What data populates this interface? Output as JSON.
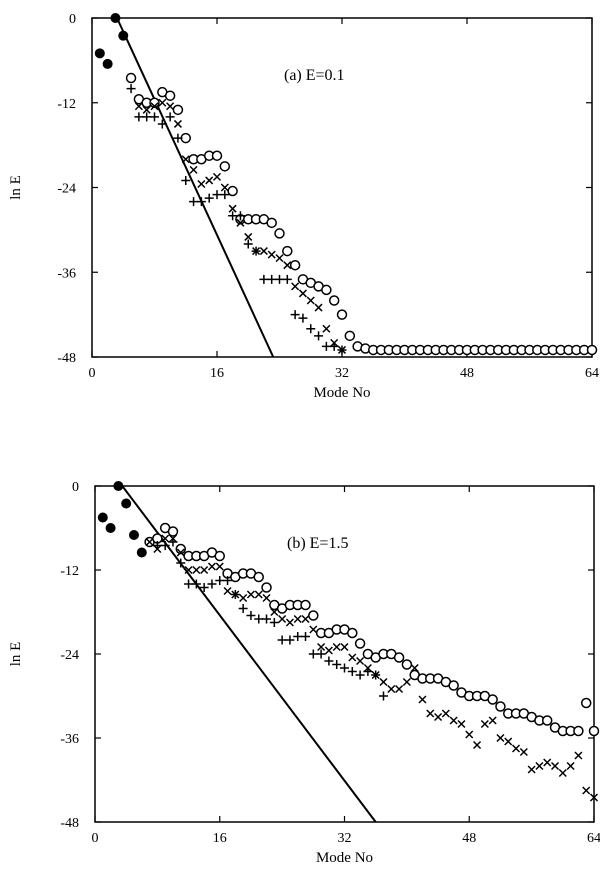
{
  "charts": [
    {
      "type": "scatter",
      "title": "(a) E=0.1",
      "xlabel": "Mode No",
      "ylabel": "ln E",
      "xlim": [
        0,
        64
      ],
      "ylim": [
        -48,
        0
      ],
      "xticks": [
        0,
        16,
        32,
        48,
        64
      ],
      "yticks": [
        0,
        -12,
        -24,
        -36,
        -48
      ],
      "line": {
        "x": [
          3.2,
          23.2
        ],
        "y": [
          0,
          -48
        ]
      },
      "series": [
        {
          "marker": "filled",
          "points": [
            [
              1,
              -5
            ],
            [
              2,
              -6.5
            ],
            [
              3,
              0
            ],
            [
              4,
              -2.5
            ]
          ]
        },
        {
          "marker": "circle",
          "points": [
            [
              5,
              -8.5
            ],
            [
              6,
              -11.5
            ],
            [
              7,
              -12
            ],
            [
              8,
              -12
            ],
            [
              9,
              -10.5
            ],
            [
              10,
              -11
            ],
            [
              11,
              -13
            ],
            [
              12,
              -17
            ],
            [
              13,
              -20
            ],
            [
              14,
              -20
            ],
            [
              15,
              -19.5
            ],
            [
              16,
              -19.5
            ],
            [
              17,
              -21
            ],
            [
              18,
              -24.5
            ],
            [
              19,
              -28.5
            ],
            [
              20,
              -28.5
            ],
            [
              21,
              -28.5
            ],
            [
              22,
              -28.5
            ],
            [
              23,
              -29
            ],
            [
              24,
              -30.5
            ],
            [
              25,
              -33
            ],
            [
              26,
              -35
            ],
            [
              27,
              -37
            ],
            [
              28,
              -37.5
            ],
            [
              29,
              -38
            ],
            [
              30,
              -38.5
            ],
            [
              31,
              -40
            ],
            [
              32,
              -42
            ],
            [
              33,
              -45
            ],
            [
              34,
              -46.5
            ],
            [
              35,
              -46.8
            ],
            [
              36,
              -47
            ],
            [
              37,
              -47
            ],
            [
              38,
              -47
            ],
            [
              39,
              -47
            ],
            [
              40,
              -47
            ],
            [
              41,
              -47
            ],
            [
              42,
              -47
            ],
            [
              43,
              -47
            ],
            [
              44,
              -47
            ],
            [
              45,
              -47
            ],
            [
              46,
              -47
            ],
            [
              47,
              -47
            ],
            [
              48,
              -47
            ],
            [
              49,
              -47
            ],
            [
              50,
              -47
            ],
            [
              51,
              -47
            ],
            [
              52,
              -47
            ],
            [
              53,
              -47
            ],
            [
              54,
              -47
            ],
            [
              55,
              -47
            ],
            [
              56,
              -47
            ],
            [
              57,
              -47
            ],
            [
              58,
              -47
            ],
            [
              59,
              -47
            ],
            [
              60,
              -47
            ],
            [
              61,
              -47
            ],
            [
              62,
              -47
            ],
            [
              63,
              -47
            ],
            [
              64,
              -47
            ]
          ]
        },
        {
          "marker": "x",
          "points": [
            [
              6,
              -12.5
            ],
            [
              7,
              -13
            ],
            [
              8,
              -12.5
            ],
            [
              9,
              -12
            ],
            [
              10,
              -12.5
            ],
            [
              11,
              -15
            ],
            [
              12,
              -20
            ],
            [
              13,
              -21.5
            ],
            [
              14,
              -23.5
            ],
            [
              15,
              -23
            ],
            [
              16,
              -22.5
            ],
            [
              17,
              -24
            ],
            [
              18,
              -27
            ],
            [
              19,
              -29
            ],
            [
              20,
              -31
            ],
            [
              21,
              -33
            ],
            [
              22,
              -33
            ],
            [
              23,
              -33.5
            ],
            [
              24,
              -34
            ],
            [
              25,
              -35
            ],
            [
              26,
              -38
            ],
            [
              27,
              -39
            ],
            [
              28,
              -40
            ],
            [
              29,
              -41
            ],
            [
              30,
              -44
            ],
            [
              31,
              -46
            ],
            [
              32,
              -47
            ]
          ]
        },
        {
          "marker": "plus",
          "points": [
            [
              5,
              -10
            ],
            [
              6,
              -14
            ],
            [
              7,
              -14
            ],
            [
              8,
              -14
            ],
            [
              9,
              -15
            ],
            [
              10,
              -14
            ],
            [
              11,
              -17
            ],
            [
              12,
              -23
            ],
            [
              13,
              -26
            ],
            [
              14,
              -26
            ],
            [
              15,
              -25.5
            ],
            [
              16,
              -25
            ],
            [
              17,
              -25
            ],
            [
              18,
              -28
            ],
            [
              19,
              -28
            ],
            [
              20,
              -32
            ],
            [
              21,
              -33
            ],
            [
              22,
              -37
            ],
            [
              23,
              -37
            ],
            [
              24,
              -37
            ],
            [
              25,
              -37
            ],
            [
              26,
              -42
            ],
            [
              27,
              -42.5
            ],
            [
              28,
              -44
            ],
            [
              29,
              -45
            ],
            [
              30,
              -46.5
            ],
            [
              31,
              -46.5
            ],
            [
              32,
              -47
            ]
          ]
        }
      ]
    },
    {
      "type": "scatter",
      "title": "(b) E=1.5",
      "xlabel": "Mode No",
      "ylabel": "ln E",
      "xlim": [
        0,
        64
      ],
      "ylim": [
        -48,
        0
      ],
      "xticks": [
        0,
        16,
        32,
        48,
        64
      ],
      "yticks": [
        0,
        -12,
        -24,
        -36,
        -48
      ],
      "line": {
        "x": [
          3.5,
          36
        ],
        "y": [
          0,
          -48
        ]
      },
      "series": [
        {
          "marker": "filled",
          "points": [
            [
              1,
              -4.5
            ],
            [
              2,
              -6
            ],
            [
              3,
              0
            ],
            [
              4,
              -2.5
            ],
            [
              5,
              -7
            ],
            [
              6,
              -9.5
            ]
          ]
        },
        {
          "marker": "circle",
          "points": [
            [
              7,
              -8
            ],
            [
              8,
              -7.5
            ],
            [
              9,
              -6
            ],
            [
              10,
              -6.5
            ],
            [
              11,
              -9
            ],
            [
              12,
              -10
            ],
            [
              13,
              -10
            ],
            [
              14,
              -10
            ],
            [
              15,
              -9.5
            ],
            [
              16,
              -10
            ],
            [
              17,
              -12.5
            ],
            [
              18,
              -13
            ],
            [
              19,
              -12.5
            ],
            [
              20,
              -12.5
            ],
            [
              21,
              -13
            ],
            [
              22,
              -14.5
            ],
            [
              23,
              -17
            ],
            [
              24,
              -17.5
            ],
            [
              25,
              -17
            ],
            [
              26,
              -17
            ],
            [
              27,
              -17
            ],
            [
              28,
              -18.5
            ],
            [
              29,
              -21
            ],
            [
              30,
              -21
            ],
            [
              31,
              -20.5
            ],
            [
              32,
              -20.5
            ],
            [
              33,
              -21
            ],
            [
              34,
              -22.5
            ],
            [
              35,
              -24
            ],
            [
              36,
              -24.5
            ],
            [
              37,
              -24
            ],
            [
              38,
              -24
            ],
            [
              39,
              -24.5
            ],
            [
              40,
              -25.5
            ],
            [
              41,
              -27
            ],
            [
              42,
              -27.5
            ],
            [
              43,
              -27.5
            ],
            [
              44,
              -27.5
            ],
            [
              45,
              -28
            ],
            [
              46,
              -28.5
            ],
            [
              47,
              -29.5
            ],
            [
              48,
              -30
            ],
            [
              49,
              -30
            ],
            [
              50,
              -30
            ],
            [
              51,
              -30.5
            ],
            [
              52,
              -31.5
            ],
            [
              53,
              -32.5
            ],
            [
              54,
              -32.5
            ],
            [
              55,
              -32.5
            ],
            [
              56,
              -33
            ],
            [
              57,
              -33.5
            ],
            [
              58,
              -33.5
            ],
            [
              59,
              -34.5
            ],
            [
              60,
              -35
            ],
            [
              61,
              -35
            ],
            [
              62,
              -35
            ],
            [
              63,
              -31
            ],
            [
              64,
              -35
            ]
          ]
        },
        {
          "marker": "x",
          "points": [
            [
              7,
              -8
            ],
            [
              8,
              -9
            ],
            [
              9,
              -7.5
            ],
            [
              10,
              -7.5
            ],
            [
              11,
              -9.5
            ],
            [
              12,
              -12
            ],
            [
              13,
              -12
            ],
            [
              14,
              -12
            ],
            [
              15,
              -11.5
            ],
            [
              16,
              -11.5
            ],
            [
              17,
              -15
            ],
            [
              18,
              -15.5
            ],
            [
              19,
              -16
            ],
            [
              20,
              -15.5
            ],
            [
              21,
              -15.5
            ],
            [
              22,
              -16
            ],
            [
              23,
              -18
            ],
            [
              24,
              -19
            ],
            [
              25,
              -19.5
            ],
            [
              26,
              -19
            ],
            [
              27,
              -19
            ],
            [
              28,
              -20.5
            ],
            [
              29,
              -23
            ],
            [
              30,
              -23.5
            ],
            [
              31,
              -23
            ],
            [
              32,
              -23
            ],
            [
              33,
              -24.5
            ],
            [
              34,
              -25
            ],
            [
              35,
              -26
            ],
            [
              36,
              -27
            ],
            [
              37,
              -28
            ],
            [
              38,
              -29
            ],
            [
              39,
              -29
            ],
            [
              40,
              -28
            ],
            [
              41,
              -26
            ],
            [
              42,
              -30.5
            ],
            [
              43,
              -32.5
            ],
            [
              44,
              -33
            ],
            [
              45,
              -32.5
            ],
            [
              46,
              -33.5
            ],
            [
              47,
              -34
            ],
            [
              48,
              -35.5
            ],
            [
              49,
              -37
            ],
            [
              50,
              -34
            ],
            [
              51,
              -33.5
            ],
            [
              52,
              -36
            ],
            [
              53,
              -36.5
            ],
            [
              54,
              -37.5
            ],
            [
              55,
              -38
            ],
            [
              56,
              -40.5
            ],
            [
              57,
              -40
            ],
            [
              58,
              -39.5
            ],
            [
              59,
              -40
            ],
            [
              60,
              -41
            ],
            [
              61,
              -40
            ],
            [
              62,
              -38.5
            ],
            [
              63,
              -43.5
            ],
            [
              64,
              -44.5
            ]
          ]
        },
        {
          "marker": "plus",
          "points": [
            [
              8,
              -8.5
            ],
            [
              9,
              -8.5
            ],
            [
              10,
              -8
            ],
            [
              11,
              -11
            ],
            [
              12,
              -14
            ],
            [
              13,
              -14
            ],
            [
              14,
              -14.5
            ],
            [
              15,
              -14
            ],
            [
              16,
              -13.5
            ],
            [
              17,
              -13.5
            ],
            [
              18,
              -15.5
            ],
            [
              19,
              -17.5
            ],
            [
              20,
              -18.5
            ],
            [
              21,
              -19
            ],
            [
              22,
              -19
            ],
            [
              23,
              -19.5
            ],
            [
              24,
              -22
            ],
            [
              25,
              -22
            ],
            [
              26,
              -21.5
            ],
            [
              27,
              -21.5
            ],
            [
              28,
              -24
            ],
            [
              29,
              -24
            ],
            [
              30,
              -25
            ],
            [
              31,
              -25.5
            ],
            [
              32,
              -26
            ],
            [
              33,
              -26.5
            ],
            [
              34,
              -27
            ],
            [
              35,
              -26.5
            ],
            [
              36,
              -27
            ],
            [
              37,
              -30
            ]
          ]
        }
      ]
    }
  ]
}
